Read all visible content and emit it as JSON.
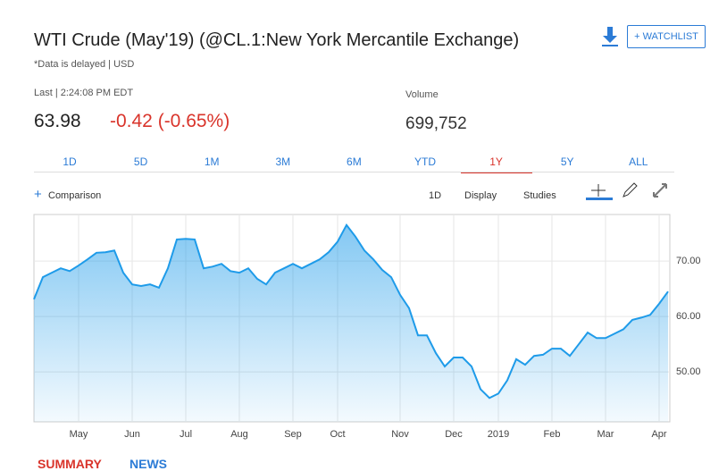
{
  "header": {
    "title": "WTI Crude (May'19) (@CL.1:New York Mercantile Exchange)",
    "subtitle": "*Data is delayed | USD",
    "watchlist": "+ WATCHLIST"
  },
  "quote": {
    "last_label": "Last | 2:24:08 PM EDT",
    "price": "63.98",
    "change": "-0.42 (-0.65%)",
    "volume_label": "Volume",
    "volume": "699,752"
  },
  "tabs": {
    "items": [
      "1D",
      "5D",
      "1M",
      "3M",
      "6M",
      "YTD",
      "1Y",
      "5Y",
      "ALL"
    ],
    "active_index": 6
  },
  "toolbar": {
    "comparison": "Comparison",
    "interval": "1D",
    "display": "Display",
    "studies": "Studies"
  },
  "bottom_tabs": [
    "SUMMARY",
    "NEWS"
  ],
  "chart_data": {
    "type": "line",
    "color": "#1e9be9",
    "grid": true,
    "categories": [
      null,
      null,
      null,
      null,
      null,
      "May",
      null,
      null,
      null,
      null,
      null,
      "Jun",
      null,
      null,
      null,
      null,
      null,
      "Jul",
      null,
      null,
      null,
      null,
      null,
      "Aug",
      null,
      null,
      null,
      null,
      null,
      "Sep",
      null,
      null,
      null,
      null,
      "Oct",
      null,
      null,
      null,
      null,
      null,
      null,
      "Nov",
      null,
      null,
      null,
      null,
      null,
      "Dec",
      null,
      null,
      null,
      null,
      "2019",
      null,
      null,
      null,
      null,
      null,
      "Feb",
      null,
      null,
      null,
      null,
      null,
      "Mar",
      null,
      null,
      null,
      null,
      null,
      "Apr",
      null
    ],
    "values": [
      63.1,
      67.1,
      67.9,
      68.7,
      68.2,
      69.2,
      70.3,
      71.5,
      71.6,
      71.9,
      67.9,
      65.8,
      65.5,
      65.8,
      65.2,
      68.7,
      73.9,
      74.0,
      73.9,
      68.7,
      69.0,
      69.5,
      68.2,
      67.9,
      68.7,
      66.8,
      65.8,
      67.9,
      68.7,
      69.5,
      68.7,
      69.5,
      70.3,
      71.6,
      73.5,
      76.5,
      74.4,
      71.9,
      70.3,
      68.4,
      67.1,
      63.9,
      61.5,
      56.6,
      56.6,
      53.4,
      51.0,
      52.6,
      52.6,
      51.0,
      46.9,
      45.3,
      46.1,
      48.5,
      52.3,
      51.3,
      52.9,
      53.1,
      54.2,
      54.2,
      52.9,
      55.0,
      57.1,
      56.1,
      56.1,
      56.9,
      57.7,
      59.4,
      59.8,
      60.3,
      62.3,
      64.5
    ],
    "ylim": [
      41,
      78.4
    ],
    "yticks": [
      {
        "value": 50,
        "label": "50.00"
      },
      {
        "value": 60,
        "label": "60.00"
      },
      {
        "value": 70,
        "label": "70.00"
      }
    ]
  }
}
